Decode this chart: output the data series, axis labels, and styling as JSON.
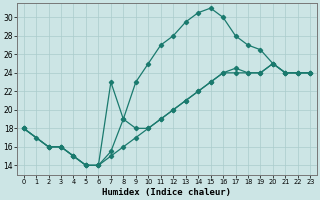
{
  "xlabel": "Humidex (Indice chaleur)",
  "bg_color": "#cce5e5",
  "line_color": "#1a7a6e",
  "grid_color": "#aacccc",
  "xlim": [
    -0.5,
    23.5
  ],
  "ylim": [
    13.0,
    31.5
  ],
  "xtick_vals": [
    0,
    1,
    2,
    3,
    4,
    5,
    6,
    7,
    8,
    9,
    10,
    11,
    12,
    13,
    14,
    15,
    16,
    17,
    18,
    19,
    20,
    21,
    22,
    23
  ],
  "ytick_vals": [
    14,
    16,
    18,
    20,
    22,
    24,
    26,
    28,
    30
  ],
  "curve1_x": [
    0,
    1,
    2,
    3,
    4,
    5,
    6,
    7,
    8,
    9,
    10,
    11,
    12,
    13,
    14,
    15,
    16,
    17,
    18,
    19,
    20,
    21,
    22,
    23
  ],
  "curve1_y": [
    18,
    17,
    16,
    16,
    15,
    14,
    14,
    15.5,
    19,
    23,
    25,
    27,
    28,
    29.5,
    30.5,
    31,
    30,
    28,
    27,
    26.5,
    25,
    24,
    24,
    24
  ],
  "curve2_x": [
    0,
    2,
    3,
    4,
    5,
    6,
    7,
    8,
    9,
    10,
    11,
    12,
    13,
    14,
    15,
    16,
    17,
    18,
    19,
    20,
    21,
    22,
    23
  ],
  "curve2_y": [
    18,
    16,
    16,
    15,
    14,
    14,
    23,
    19,
    18,
    18,
    19,
    20,
    21,
    22,
    23,
    24,
    24.5,
    24,
    24,
    25,
    24,
    24,
    24
  ],
  "curve3_x": [
    0,
    2,
    3,
    4,
    5,
    6,
    7,
    8,
    9,
    10,
    11,
    12,
    13,
    14,
    15,
    16,
    17,
    18,
    19,
    20,
    21,
    22,
    23
  ],
  "curve3_y": [
    18,
    16,
    16,
    15,
    14,
    14,
    15,
    16,
    17,
    18,
    19,
    20,
    21,
    22,
    23,
    24,
    24,
    24,
    24,
    25,
    24,
    24,
    24
  ]
}
